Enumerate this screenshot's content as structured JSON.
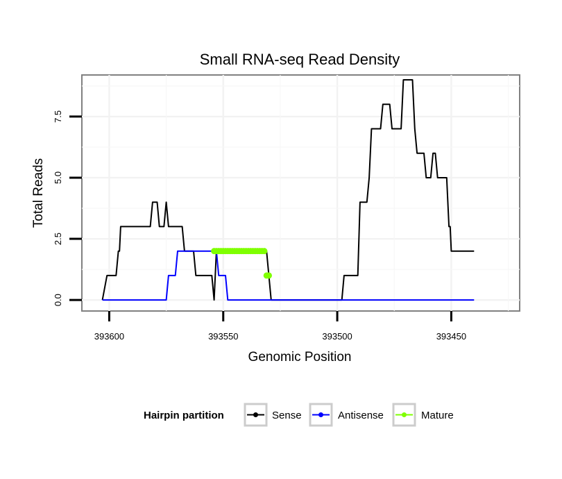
{
  "chart_data": {
    "type": "line",
    "title": "Small RNA-seq Read Density",
    "xlabel": "Genomic Position",
    "ylabel": "Total Reads",
    "xlim": [
      393612,
      393420
    ],
    "ylim": [
      -0.45,
      9.2
    ],
    "x_reversed": true,
    "grid": true,
    "x_ticks": [
      393600,
      393550,
      393500,
      393450
    ],
    "x_tick_labels": [
      "393600",
      "393550",
      "393500",
      "393450"
    ],
    "y_ticks": [
      0,
      2.5,
      5,
      7.5
    ],
    "y_tick_labels": [
      "0.0",
      "2.5",
      "5.0",
      "7.5"
    ],
    "legend": {
      "title": "Hairpin partition",
      "placement": "bottom",
      "entries": [
        "Sense",
        "Antisense",
        "Mature"
      ]
    },
    "series": [
      {
        "name": "Sense",
        "color": "#000000",
        "style": "line",
        "points": [
          [
            393603,
            0
          ],
          [
            393601,
            1
          ],
          [
            393597,
            1
          ],
          [
            393596,
            2
          ],
          [
            393595.5,
            2
          ],
          [
            393595,
            3
          ],
          [
            393582,
            3
          ],
          [
            393581,
            4
          ],
          [
            393579,
            4
          ],
          [
            393578,
            3
          ],
          [
            393576,
            3
          ],
          [
            393575,
            4
          ],
          [
            393574,
            3
          ],
          [
            393568,
            3
          ],
          [
            393567,
            2
          ],
          [
            393563,
            2
          ],
          [
            393562,
            1
          ],
          [
            393555,
            1
          ],
          [
            393554,
            0
          ],
          [
            393553,
            2
          ],
          [
            393531,
            2
          ],
          [
            393529,
            0
          ],
          [
            393498,
            0
          ],
          [
            393497,
            1
          ],
          [
            393491,
            1
          ],
          [
            393490,
            4
          ],
          [
            393487,
            4
          ],
          [
            393486,
            5
          ],
          [
            393485,
            7
          ],
          [
            393481,
            7
          ],
          [
            393480,
            8
          ],
          [
            393477,
            8
          ],
          [
            393476,
            7
          ],
          [
            393472,
            7
          ],
          [
            393471,
            9
          ],
          [
            393467,
            9
          ],
          [
            393466,
            7
          ],
          [
            393465,
            6
          ],
          [
            393462,
            6
          ],
          [
            393461,
            5
          ],
          [
            393459,
            5
          ],
          [
            393458,
            6
          ],
          [
            393457,
            6
          ],
          [
            393456,
            5
          ],
          [
            393452,
            5
          ],
          [
            393451,
            3
          ],
          [
            393450.5,
            3
          ],
          [
            393450,
            2
          ],
          [
            393440,
            2
          ]
        ]
      },
      {
        "name": "Antisense",
        "color": "#0000ff",
        "style": "line",
        "points": [
          [
            393603,
            0
          ],
          [
            393575,
            0
          ],
          [
            393574,
            1
          ],
          [
            393571,
            1
          ],
          [
            393570,
            2
          ],
          [
            393553,
            2
          ],
          [
            393552,
            1
          ],
          [
            393549,
            1
          ],
          [
            393548,
            0
          ],
          [
            393440,
            0
          ]
        ]
      },
      {
        "name": "Mature",
        "color": "#7fff00",
        "style": "points",
        "points": [
          [
            393554,
            2
          ],
          [
            393553,
            2
          ],
          [
            393552,
            2
          ],
          [
            393551,
            2
          ],
          [
            393550,
            2
          ],
          [
            393549,
            2
          ],
          [
            393548,
            2
          ],
          [
            393547,
            2
          ],
          [
            393546,
            2
          ],
          [
            393545,
            2
          ],
          [
            393544,
            2
          ],
          [
            393543,
            2
          ],
          [
            393542,
            2
          ],
          [
            393541,
            2
          ],
          [
            393540,
            2
          ],
          [
            393539,
            2
          ],
          [
            393538,
            2
          ],
          [
            393537,
            2
          ],
          [
            393536,
            2
          ],
          [
            393535,
            2
          ],
          [
            393534,
            2
          ],
          [
            393533,
            2
          ],
          [
            393532,
            2
          ],
          [
            393531,
            1
          ],
          [
            393530,
            1
          ]
        ]
      }
    ]
  }
}
